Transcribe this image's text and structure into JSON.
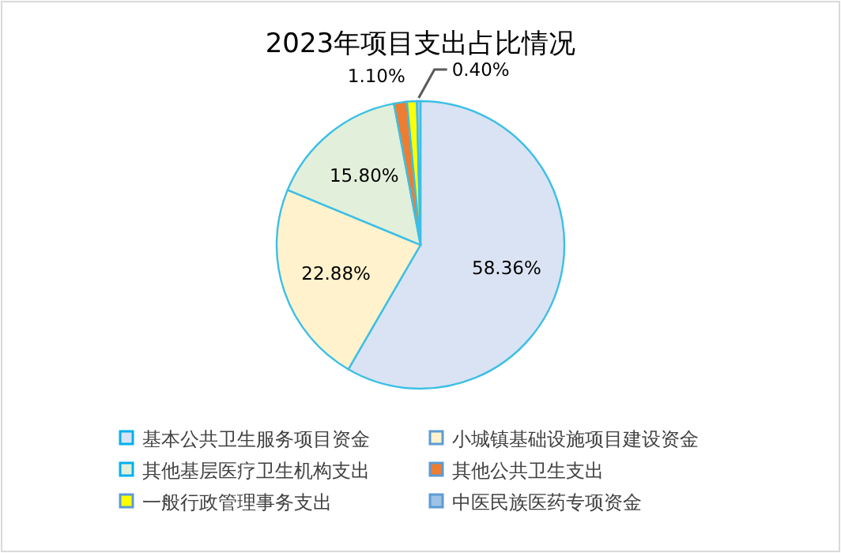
{
  "chart_data": {
    "type": "pie",
    "title": "2023年项目支出占比情况",
    "categories": [
      "基本公共卫生服务项目资金",
      "小城镇基础设施项目建设资金",
      "其他基层医疗卫生机构支出",
      "其他公共卫生支出",
      "一般行政管理事务支出",
      "中医民族医药专项资金"
    ],
    "values": [
      58.36,
      22.88,
      15.8,
      1.46,
      1.1,
      0.4
    ],
    "value_labels": [
      "58.36%",
      "22.88%",
      "15.80%",
      null,
      "1.10%",
      "0.40%"
    ],
    "colors": [
      "#dae3f3",
      "#fff2cc",
      "#e2efda",
      "#ed7d31",
      "#ffff00",
      "#9dc3e6"
    ],
    "legend": "bottom"
  }
}
